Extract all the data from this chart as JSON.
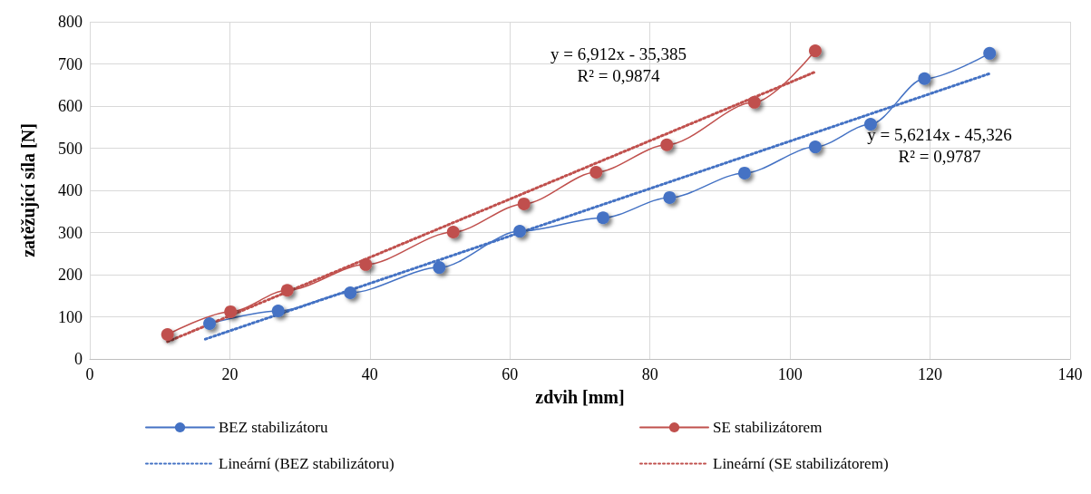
{
  "chart_data": {
    "type": "line",
    "xlabel": "zdvih [mm]",
    "ylabel": "zatěžující síla [N]",
    "xlim": [
      0,
      140
    ],
    "xticks": [
      0,
      20,
      40,
      60,
      80,
      100,
      120,
      140
    ],
    "ylim": [
      0,
      800
    ],
    "yticks": [
      0,
      100,
      200,
      300,
      400,
      500,
      600,
      700,
      800
    ],
    "grid": true,
    "legend": "bottom",
    "series": [
      {
        "name": "BEZ stabilizátoru",
        "color": "#4472c4",
        "marker": "circle",
        "line_style": "solid",
        "x": [
          17.1,
          26.9,
          37.2,
          49.9,
          61.4,
          73.3,
          82.8,
          93.5,
          103.6,
          111.5,
          119.2,
          128.5
        ],
        "values": [
          84,
          114,
          157,
          217,
          303,
          335,
          383,
          441,
          503,
          557,
          665,
          725
        ]
      },
      {
        "name": "SE stabilizátorem",
        "color": "#c0504d",
        "marker": "circle",
        "line_style": "solid",
        "x": [
          11.1,
          20.1,
          28.2,
          39.4,
          51.9,
          62.0,
          72.3,
          82.4,
          94.9,
          103.6
        ],
        "values": [
          58,
          112,
          163,
          224,
          301,
          368,
          443,
          508,
          609,
          731
        ]
      },
      {
        "name": "Lineární (BEZ stabilizátoru)",
        "color": "#4472c4",
        "marker": "none",
        "line_style": "dotted",
        "x": [
          16.5,
          128.5
        ],
        "values": [
          47,
          677
        ]
      },
      {
        "name": "Lineární (SE stabilizátorem)",
        "color": "#c0504d",
        "marker": "none",
        "line_style": "dotted",
        "x": [
          11.1,
          103.6
        ],
        "values": [
          41,
          681
        ]
      }
    ],
    "annotations": [
      "y = 6,912x - 35,385\nR² = 0,9874",
      "y = 5,6214x - 45,326\nR² = 0,9787"
    ]
  }
}
